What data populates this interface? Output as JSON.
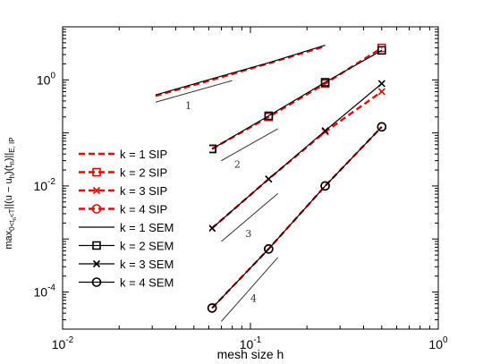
{
  "chart_data": {
    "type": "line",
    "xlabel": "mesh size h",
    "ylabel_parts": {
      "max": "max",
      "sub": "0<t",
      "subsub": "n",
      "sub2": "<T",
      "body": "||(u − u",
      "h_sub": "h",
      "mid": ")(t",
      "n_sub": "n",
      "end": ")||",
      "norm_sub": "E, IP"
    },
    "x_scale": "log",
    "y_scale": "log",
    "xlim": [
      0.01,
      1
    ],
    "ylim": [
      2e-05,
      10
    ],
    "x_ticks": [
      {
        "value": 0.01,
        "base": "10",
        "exp": "-2"
      },
      {
        "value": 0.1,
        "base": "10",
        "exp": "-1"
      },
      {
        "value": 1,
        "base": "10",
        "exp": "0"
      }
    ],
    "y_ticks": [
      {
        "value": 0.0001,
        "base": "10",
        "exp": "-4"
      },
      {
        "value": 0.01,
        "base": "10",
        "exp": "-2"
      },
      {
        "value": 1,
        "base": "10",
        "exp": "0"
      }
    ],
    "grid": false,
    "legend_position": "bottom-left",
    "series": [
      {
        "name": "k = 1 SIP",
        "color": "#ff0000",
        "dash": true,
        "marker": "none",
        "x": [
          0.03125,
          0.0625,
          0.125,
          0.25
        ],
        "y": [
          0.5,
          1.0,
          2.05,
          4.3
        ]
      },
      {
        "name": "k = 2 SIP",
        "color": "#ff0000",
        "dash": true,
        "marker": "square",
        "x": [
          0.0625,
          0.125,
          0.25,
          0.5
        ],
        "y": [
          0.05,
          0.2,
          0.85,
          4.0
        ]
      },
      {
        "name": "k = 3 SIP",
        "color": "#ff0000",
        "dash": true,
        "marker": "x",
        "x": [
          0.0625,
          0.125,
          0.25,
          0.5
        ],
        "y": [
          0.0016,
          0.0135,
          0.105,
          0.6
        ]
      },
      {
        "name": "k = 4 SIP",
        "color": "#ff0000",
        "dash": true,
        "marker": "circle",
        "x": [
          0.0625,
          0.125,
          0.25,
          0.5
        ],
        "y": [
          5e-05,
          0.00065,
          0.01,
          0.13
        ]
      },
      {
        "name": "k = 1 SEM",
        "color": "#000000",
        "dash": false,
        "marker": "none",
        "x": [
          0.03125,
          0.0625,
          0.125,
          0.25
        ],
        "y": [
          0.52,
          1.05,
          2.1,
          4.5
        ]
      },
      {
        "name": "k = 2 SEM",
        "color": "#000000",
        "dash": false,
        "marker": "square",
        "x": [
          0.0625,
          0.125,
          0.25,
          0.5
        ],
        "y": [
          0.05,
          0.21,
          0.9,
          3.6
        ]
      },
      {
        "name": "k = 3 SEM",
        "color": "#000000",
        "dash": false,
        "marker": "x",
        "x": [
          0.0625,
          0.125,
          0.25,
          0.5
        ],
        "y": [
          0.0016,
          0.0135,
          0.11,
          0.85
        ]
      },
      {
        "name": "k = 4 SEM",
        "color": "#000000",
        "dash": false,
        "marker": "circle",
        "x": [
          0.0625,
          0.125,
          0.25,
          0.5
        ],
        "y": [
          5e-05,
          0.00065,
          0.01,
          0.13
        ]
      }
    ],
    "slope_triangles": [
      {
        "label": "1",
        "x": [
          0.03125,
          0.08
        ],
        "y": [
          0.38,
          0.97
        ],
        "label_x": 0.045,
        "label_y": 0.28
      },
      {
        "label": "2",
        "x": [
          0.07,
          0.14
        ],
        "y": [
          0.03,
          0.12
        ],
        "label_x": 0.082,
        "label_y": 0.022
      },
      {
        "label": "3",
        "x": [
          0.07,
          0.14
        ],
        "y": [
          0.0009,
          0.0072
        ],
        "label_x": 0.094,
        "label_y": 0.0011
      },
      {
        "label": "4",
        "x": [
          0.07,
          0.14
        ],
        "y": [
          2.8e-05,
          0.00045
        ],
        "label_x": 0.1,
        "label_y": 6.5e-05
      }
    ]
  }
}
